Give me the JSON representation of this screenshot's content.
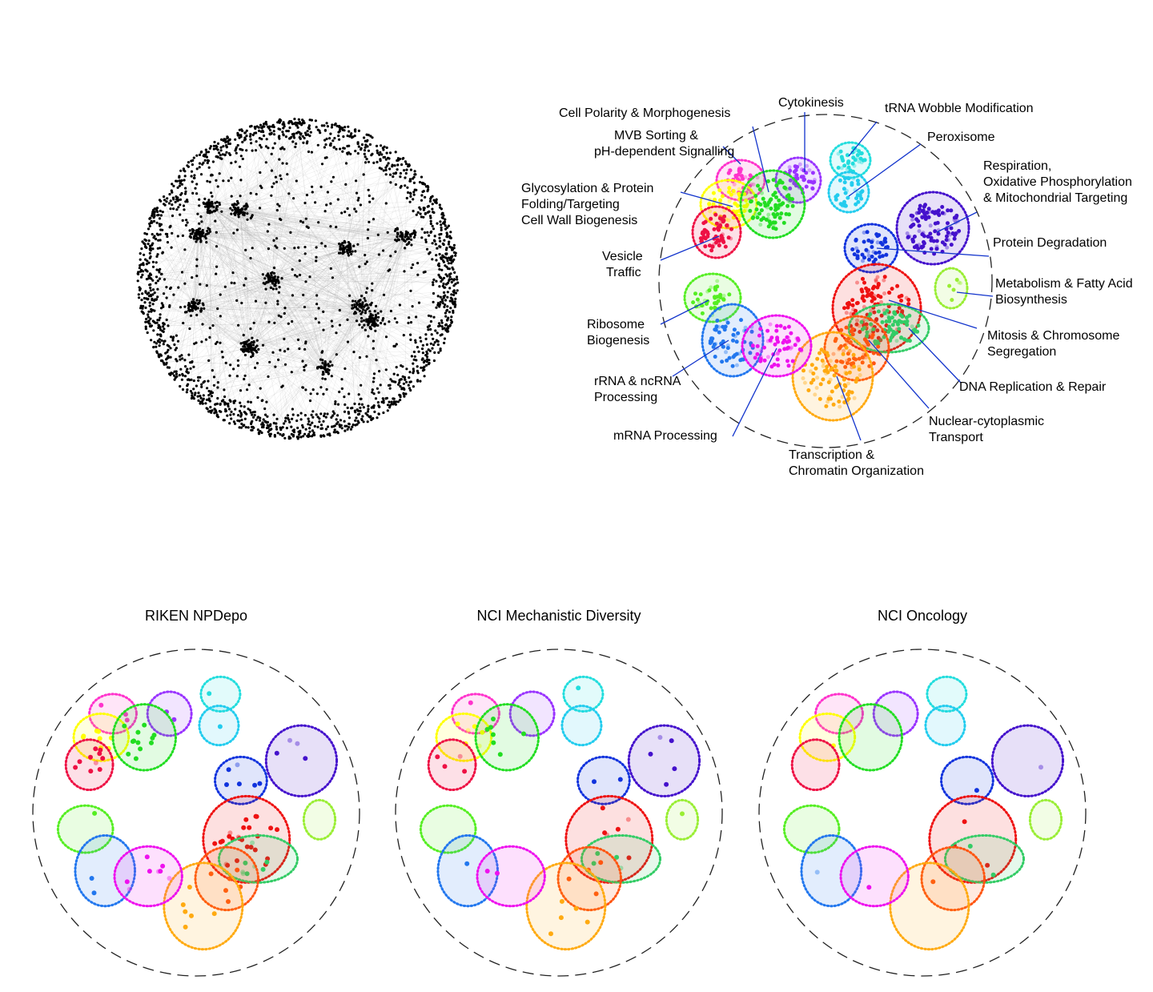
{
  "figure": {
    "type": "network-cluster-map",
    "network_panel": {
      "dot_color": "#000000",
      "edge_color": "#999999"
    },
    "annotated_map": {
      "labels": [
        [
          "Cell Polarity & Morphogenesis"
        ],
        [
          "Cytokinesis"
        ],
        [
          "tRNA Wobble Modification"
        ],
        [
          "Peroxisome"
        ],
        [
          "MVB Sorting &",
          "pH-dependent Signalling"
        ],
        [
          "Glycosylation & Protein",
          "Folding/Targeting",
          "Cell Wall Biogenesis"
        ],
        [
          "Vesicle",
          "Traffic"
        ],
        [
          "Respiration,",
          "Oxidative Phosphorylation",
          "& Mitochondrial Targeting"
        ],
        [
          "Protein Degradation"
        ],
        [
          "Metabolism & Fatty Acid",
          "Biosynthesis"
        ],
        [
          "Ribosome",
          "Biogenesis"
        ],
        [
          "Mitosis & Chromosome",
          "Segregation"
        ],
        [
          "rRNA & ncRNA",
          "Processing"
        ],
        [
          "DNA Replication & Repair"
        ],
        [
          "Nuclear-cytoplasmic",
          "Transport"
        ],
        [
          "mRNA Processing"
        ],
        [
          "Transcription &",
          "Chromatin Organization"
        ]
      ],
      "leader_color": "#1133cc"
    },
    "clusters": [
      {
        "id": "cell-polarity",
        "color": "#ff33cc"
      },
      {
        "id": "cytokinesis",
        "color": "#9933ff"
      },
      {
        "id": "trna-wobble",
        "color": "#22dddd"
      },
      {
        "id": "peroxisome",
        "color": "#22ccee"
      },
      {
        "id": "glycosylation",
        "color": "#ffff00"
      },
      {
        "id": "mvb-sorting",
        "color": "#22dd22"
      },
      {
        "id": "vesicle-traffic",
        "color": "#ee1144"
      },
      {
        "id": "respiration",
        "color": "#4411cc"
      },
      {
        "id": "protein-degradation",
        "color": "#1133dd"
      },
      {
        "id": "metabolism",
        "color": "#99ee33"
      },
      {
        "id": "mitosis",
        "color": "#ee1111"
      },
      {
        "id": "dna-replication",
        "color": "#33cc66"
      },
      {
        "id": "nuclear-transport",
        "color": "#ff5511"
      },
      {
        "id": "transcription",
        "color": "#ffaa11"
      },
      {
        "id": "ribosome",
        "color": "#55ee22"
      },
      {
        "id": "rrna",
        "color": "#2277ee"
      },
      {
        "id": "mrna",
        "color": "#ee11ee"
      }
    ],
    "panels": [
      {
        "title": "",
        "points": [
          40,
          45,
          35,
          35,
          50,
          80,
          60,
          110,
          45,
          6,
          110,
          70,
          60,
          80,
          40,
          60,
          60
        ]
      },
      {
        "title": "RIKEN NPDepo",
        "points": [
          3,
          2,
          1,
          1,
          8,
          12,
          10,
          4,
          6,
          0,
          25,
          8,
          6,
          6,
          1,
          2,
          8
        ]
      },
      {
        "title": "NCI Mechanistic Diversity",
        "points": [
          1,
          0,
          1,
          0,
          6,
          7,
          4,
          5,
          2,
          1,
          6,
          4,
          4,
          5,
          0,
          1,
          2
        ]
      },
      {
        "title": "NCI  Oncology",
        "points": [
          0,
          0,
          0,
          0,
          1,
          0,
          0,
          1,
          1,
          0,
          3,
          2,
          1,
          0,
          0,
          1,
          1
        ]
      }
    ]
  }
}
